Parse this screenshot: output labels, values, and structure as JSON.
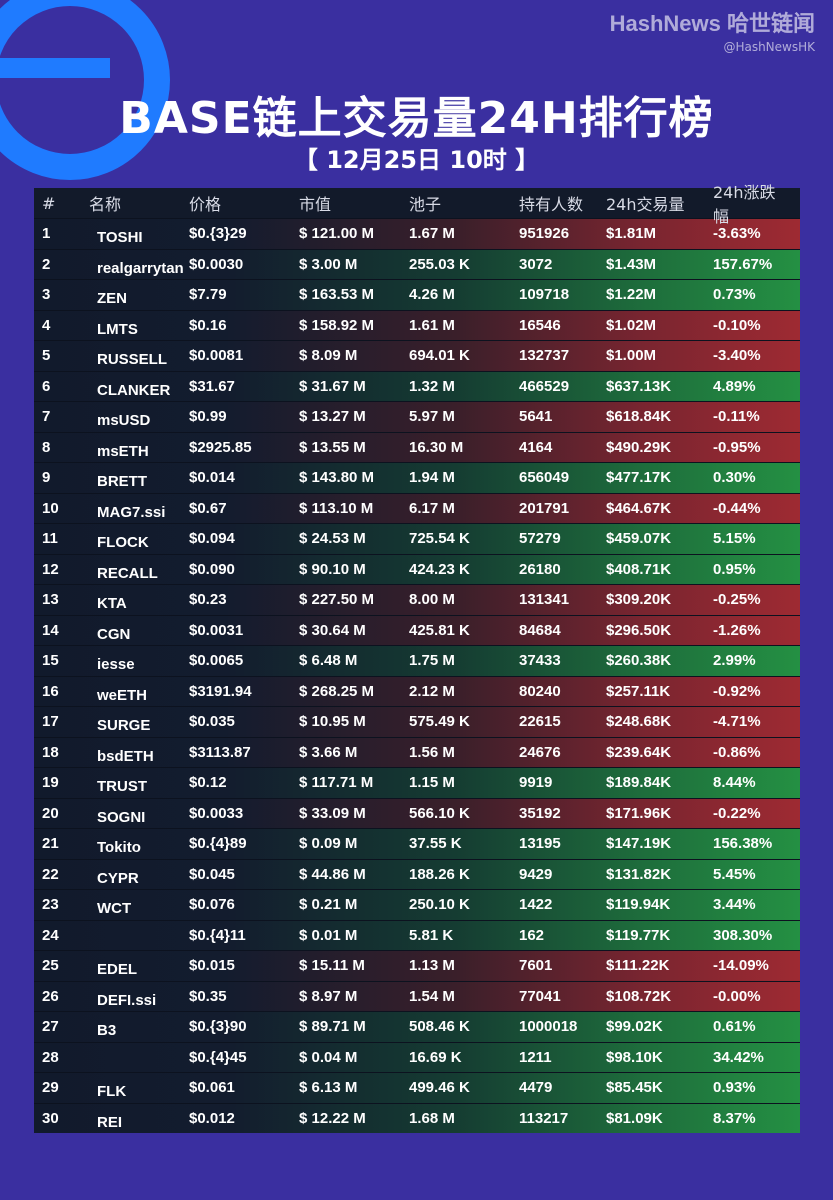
{
  "brand": {
    "name": "HashNews 哈世链闻",
    "handle": "@HashNewsHK"
  },
  "title": "BASE链上交易量24H排行榜",
  "subtitle": "【 12月25日 10时 】",
  "headers": [
    "#",
    "名称",
    "价格",
    "市值",
    "池子",
    "持有人数",
    "24h交易量",
    "24h涨跌幅"
  ],
  "rows": [
    {
      "rank": "1",
      "name": "TOSHI",
      "price": "$0.{3}29",
      "mcap": "$ 121.00 M",
      "pool": "1.67 M",
      "holders": "951926",
      "vol": "$1.81M",
      "chg": "-3.63%",
      "trend": "neg"
    },
    {
      "rank": "2",
      "name": "realgarrytan",
      "price": "$0.0030",
      "mcap": "$ 3.00 M",
      "pool": "255.03 K",
      "holders": "3072",
      "vol": "$1.43M",
      "chg": "157.67%",
      "trend": "pos"
    },
    {
      "rank": "3",
      "name": "ZEN",
      "price": "$7.79",
      "mcap": "$ 163.53 M",
      "pool": "4.26 M",
      "holders": "109718",
      "vol": "$1.22M",
      "chg": "0.73%",
      "trend": "pos"
    },
    {
      "rank": "4",
      "name": "LMTS",
      "price": "$0.16",
      "mcap": "$ 158.92 M",
      "pool": "1.61 M",
      "holders": "16546",
      "vol": "$1.02M",
      "chg": "-0.10%",
      "trend": "neg"
    },
    {
      "rank": "5",
      "name": "RUSSELL",
      "price": "$0.0081",
      "mcap": "$ 8.09 M",
      "pool": "694.01 K",
      "holders": "132737",
      "vol": "$1.00M",
      "chg": "-3.40%",
      "trend": "neg"
    },
    {
      "rank": "6",
      "name": "CLANKER",
      "price": "$31.67",
      "mcap": "$ 31.67 M",
      "pool": "1.32 M",
      "holders": "466529",
      "vol": "$637.13K",
      "chg": "4.89%",
      "trend": "pos"
    },
    {
      "rank": "7",
      "name": "msUSD",
      "price": "$0.99",
      "mcap": "$ 13.27 M",
      "pool": "5.97 M",
      "holders": "5641",
      "vol": "$618.84K",
      "chg": "-0.11%",
      "trend": "neg"
    },
    {
      "rank": "8",
      "name": "msETH",
      "price": "$2925.85",
      "mcap": "$ 13.55 M",
      "pool": "16.30 M",
      "holders": "4164",
      "vol": "$490.29K",
      "chg": "-0.95%",
      "trend": "neg"
    },
    {
      "rank": "9",
      "name": "BRETT",
      "price": "$0.014",
      "mcap": "$ 143.80 M",
      "pool": "1.94 M",
      "holders": "656049",
      "vol": "$477.17K",
      "chg": "0.30%",
      "trend": "pos"
    },
    {
      "rank": "10",
      "name": "MAG7.ssi",
      "price": "$0.67",
      "mcap": "$ 113.10 M",
      "pool": "6.17 M",
      "holders": "201791",
      "vol": "$464.67K",
      "chg": "-0.44%",
      "trend": "neg"
    },
    {
      "rank": "11",
      "name": "FLOCK",
      "price": "$0.094",
      "mcap": "$ 24.53 M",
      "pool": "725.54 K",
      "holders": "57279",
      "vol": "$459.07K",
      "chg": "5.15%",
      "trend": "pos"
    },
    {
      "rank": "12",
      "name": "RECALL",
      "price": "$0.090",
      "mcap": "$ 90.10 M",
      "pool": "424.23 K",
      "holders": "26180",
      "vol": "$408.71K",
      "chg": "0.95%",
      "trend": "pos"
    },
    {
      "rank": "13",
      "name": "KTA",
      "price": "$0.23",
      "mcap": "$ 227.50 M",
      "pool": "8.00 M",
      "holders": "131341",
      "vol": "$309.20K",
      "chg": "-0.25%",
      "trend": "neg"
    },
    {
      "rank": "14",
      "name": "CGN",
      "price": "$0.0031",
      "mcap": "$ 30.64 M",
      "pool": "425.81 K",
      "holders": "84684",
      "vol": "$296.50K",
      "chg": "-1.26%",
      "trend": "neg"
    },
    {
      "rank": "15",
      "name": "iesse",
      "price": "$0.0065",
      "mcap": "$ 6.48 M",
      "pool": "1.75 M",
      "holders": "37433",
      "vol": "$260.38K",
      "chg": "2.99%",
      "trend": "pos"
    },
    {
      "rank": "16",
      "name": "weETH",
      "price": "$3191.94",
      "mcap": "$ 268.25 M",
      "pool": "2.12 M",
      "holders": "80240",
      "vol": "$257.11K",
      "chg": "-0.92%",
      "trend": "neg"
    },
    {
      "rank": "17",
      "name": "SURGE",
      "price": "$0.035",
      "mcap": "$ 10.95 M",
      "pool": "575.49 K",
      "holders": "22615",
      "vol": "$248.68K",
      "chg": "-4.71%",
      "trend": "neg"
    },
    {
      "rank": "18",
      "name": "bsdETH",
      "price": "$3113.87",
      "mcap": "$ 3.66 M",
      "pool": "1.56 M",
      "holders": "24676",
      "vol": "$239.64K",
      "chg": "-0.86%",
      "trend": "neg"
    },
    {
      "rank": "19",
      "name": "TRUST",
      "price": "$0.12",
      "mcap": "$ 117.71 M",
      "pool": "1.15 M",
      "holders": "9919",
      "vol": "$189.84K",
      "chg": "8.44%",
      "trend": "pos"
    },
    {
      "rank": "20",
      "name": "SOGNI",
      "price": "$0.0033",
      "mcap": "$ 33.09 M",
      "pool": "566.10 K",
      "holders": "35192",
      "vol": "$171.96K",
      "chg": "-0.22%",
      "trend": "neg"
    },
    {
      "rank": "21",
      "name": "Tokito",
      "price": "$0.{4}89",
      "mcap": "$ 0.09 M",
      "pool": "37.55 K",
      "holders": "13195",
      "vol": "$147.19K",
      "chg": "156.38%",
      "trend": "pos"
    },
    {
      "rank": "22",
      "name": "CYPR",
      "price": "$0.045",
      "mcap": "$ 44.86 M",
      "pool": "188.26 K",
      "holders": "9429",
      "vol": "$131.82K",
      "chg": "5.45%",
      "trend": "pos"
    },
    {
      "rank": "23",
      "name": "WCT",
      "price": "$0.076",
      "mcap": "$ 0.21 M",
      "pool": "250.10 K",
      "holders": "1422",
      "vol": "$119.94K",
      "chg": "3.44%",
      "trend": "pos"
    },
    {
      "rank": "24",
      "name": "",
      "price": "$0.{4}11",
      "mcap": "$ 0.01 M",
      "pool": "5.81 K",
      "holders": "162",
      "vol": "$119.77K",
      "chg": "308.30%",
      "trend": "pos"
    },
    {
      "rank": "25",
      "name": "EDEL",
      "price": "$0.015",
      "mcap": "$ 15.11 M",
      "pool": "1.13 M",
      "holders": "7601",
      "vol": "$111.22K",
      "chg": "-14.09%",
      "trend": "neg"
    },
    {
      "rank": "26",
      "name": "DEFI.ssi",
      "price": "$0.35",
      "mcap": "$ 8.97 M",
      "pool": "1.54 M",
      "holders": "77041",
      "vol": "$108.72K",
      "chg": "-0.00%",
      "trend": "neg"
    },
    {
      "rank": "27",
      "name": "B3",
      "price": "$0.{3}90",
      "mcap": "$ 89.71 M",
      "pool": "508.46 K",
      "holders": "1000018",
      "vol": "$99.02K",
      "chg": "0.61%",
      "trend": "pos"
    },
    {
      "rank": "28",
      "name": "",
      "price": "$0.{4}45",
      "mcap": "$ 0.04 M",
      "pool": "16.69 K",
      "holders": "1211",
      "vol": "$98.10K",
      "chg": "34.42%",
      "trend": "pos"
    },
    {
      "rank": "29",
      "name": "FLK",
      "price": "$0.061",
      "mcap": "$ 6.13 M",
      "pool": "499.46 K",
      "holders": "4479",
      "vol": "$85.45K",
      "chg": "0.93%",
      "trend": "pos"
    },
    {
      "rank": "30",
      "name": "REI",
      "price": "$0.012",
      "mcap": "$ 12.22 M",
      "pool": "1.68 M",
      "holders": "113217",
      "vol": "$81.09K",
      "chg": "8.37%",
      "trend": "pos"
    }
  ]
}
